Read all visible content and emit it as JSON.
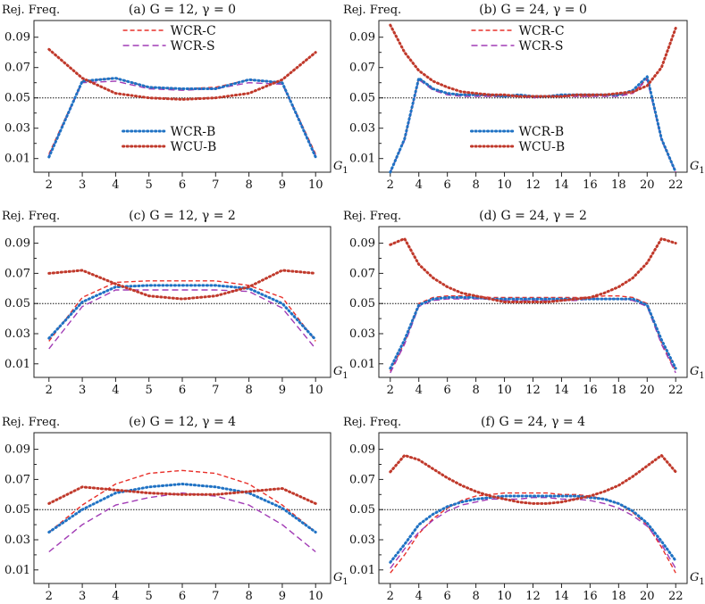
{
  "figure": {
    "ylabel": "Rej. Freq.",
    "xlabel": "G",
    "xlabel_sub": "1",
    "reference_line": 0.05
  },
  "colors": {
    "WCR-C": "#e8302a",
    "WCR-S": "#a13bb5",
    "WCR-B": "#1f72c4",
    "WCU-B": "#c0392b"
  },
  "chart_data": [
    {
      "type": "line",
      "id": "a",
      "title": "(a) G = 12, γ = 0",
      "x": [
        2,
        3,
        4,
        5,
        6,
        7,
        8,
        9,
        10
      ],
      "xticks": [
        2,
        3,
        4,
        5,
        6,
        7,
        8,
        9,
        10
      ],
      "xlim": [
        1.55,
        10.45
      ],
      "ylim": [
        0.001,
        0.101
      ],
      "yticks": [
        0.01,
        0.03,
        0.05,
        0.07,
        0.09
      ],
      "ytick_labels": [
        "0.01",
        "0.03",
        "0.05",
        "0.07",
        "0.09"
      ],
      "legend": "split",
      "series": [
        {
          "name": "WCR-C",
          "style": "dashed-red",
          "values": [
            0.013,
            0.061,
            0.063,
            0.057,
            0.056,
            0.057,
            0.062,
            0.06,
            0.013
          ]
        },
        {
          "name": "WCR-S",
          "style": "dashed-purple",
          "values": [
            0.012,
            0.06,
            0.061,
            0.056,
            0.055,
            0.056,
            0.06,
            0.059,
            0.012
          ]
        },
        {
          "name": "WCR-B",
          "style": "dotted-blue",
          "values": [
            0.011,
            0.061,
            0.063,
            0.057,
            0.056,
            0.056,
            0.062,
            0.06,
            0.011
          ]
        },
        {
          "name": "WCU-B",
          "style": "dotted-red",
          "values": [
            0.082,
            0.063,
            0.053,
            0.05,
            0.049,
            0.05,
            0.053,
            0.062,
            0.08
          ]
        }
      ]
    },
    {
      "type": "line",
      "id": "b",
      "title": "(b) G = 24, γ = 0",
      "x": [
        2,
        3,
        4,
        5,
        6,
        7,
        8,
        9,
        10,
        11,
        12,
        13,
        14,
        15,
        16,
        17,
        18,
        19,
        20,
        21,
        22
      ],
      "xticks": [
        2,
        4,
        6,
        8,
        10,
        12,
        14,
        16,
        18,
        20,
        22
      ],
      "xlim": [
        1.2,
        22.8
      ],
      "ylim": [
        0.001,
        0.101
      ],
      "yticks": [
        0.01,
        0.03,
        0.05,
        0.07,
        0.09
      ],
      "ytick_labels": [
        "0.01",
        "0.03",
        "0.05",
        "0.07",
        "0.09"
      ],
      "legend": "split",
      "series": [
        {
          "name": "WCR-C",
          "style": "dashed-red",
          "values": [
            0.001,
            0.023,
            0.063,
            0.056,
            0.053,
            0.052,
            0.052,
            0.051,
            0.051,
            0.051,
            0.051,
            0.051,
            0.051,
            0.051,
            0.051,
            0.052,
            0.052,
            0.053,
            0.063,
            0.023,
            0.001
          ]
        },
        {
          "name": "WCR-S",
          "style": "dashed-purple",
          "values": [
            0.001,
            0.022,
            0.062,
            0.055,
            0.052,
            0.051,
            0.051,
            0.051,
            0.051,
            0.051,
            0.05,
            0.051,
            0.051,
            0.051,
            0.051,
            0.051,
            0.051,
            0.053,
            0.062,
            0.022,
            0.001
          ]
        },
        {
          "name": "WCR-B",
          "style": "dotted-blue",
          "values": [
            0.001,
            0.023,
            0.063,
            0.056,
            0.053,
            0.052,
            0.052,
            0.052,
            0.051,
            0.052,
            0.051,
            0.051,
            0.052,
            0.052,
            0.052,
            0.052,
            0.052,
            0.055,
            0.064,
            0.023,
            0.001
          ]
        },
        {
          "name": "WCU-B",
          "style": "dotted-red",
          "values": [
            0.098,
            0.08,
            0.068,
            0.061,
            0.057,
            0.054,
            0.053,
            0.052,
            0.052,
            0.051,
            0.051,
            0.051,
            0.051,
            0.052,
            0.052,
            0.052,
            0.053,
            0.054,
            0.058,
            0.07,
            0.096
          ]
        }
      ]
    },
    {
      "type": "line",
      "id": "c",
      "title": "(c) G = 12, γ = 2",
      "x": [
        2,
        3,
        4,
        5,
        6,
        7,
        8,
        9,
        10
      ],
      "xticks": [
        2,
        3,
        4,
        5,
        6,
        7,
        8,
        9,
        10
      ],
      "xlim": [
        1.55,
        10.45
      ],
      "ylim": [
        0.001,
        0.101
      ],
      "yticks": [
        0.01,
        0.03,
        0.05,
        0.07,
        0.09
      ],
      "ytick_labels": [
        "0.01",
        "0.03",
        "0.05",
        "0.07",
        "0.09"
      ],
      "legend": "none",
      "series": [
        {
          "name": "WCR-C",
          "style": "dashed-red",
          "values": [
            0.025,
            0.054,
            0.064,
            0.065,
            0.065,
            0.065,
            0.062,
            0.054,
            0.025
          ]
        },
        {
          "name": "WCR-S",
          "style": "dashed-purple",
          "values": [
            0.02,
            0.048,
            0.059,
            0.059,
            0.059,
            0.059,
            0.058,
            0.047,
            0.02
          ]
        },
        {
          "name": "WCR-B",
          "style": "dotted-blue",
          "values": [
            0.027,
            0.051,
            0.061,
            0.062,
            0.062,
            0.062,
            0.06,
            0.05,
            0.026
          ]
        },
        {
          "name": "WCU-B",
          "style": "dotted-red",
          "values": [
            0.07,
            0.072,
            0.063,
            0.055,
            0.053,
            0.055,
            0.061,
            0.072,
            0.07
          ]
        }
      ]
    },
    {
      "type": "line",
      "id": "d",
      "title": "(d) G = 24, γ = 2",
      "x": [
        2,
        3,
        4,
        5,
        6,
        7,
        8,
        9,
        10,
        11,
        12,
        13,
        14,
        15,
        16,
        17,
        18,
        19,
        20,
        21,
        22
      ],
      "xticks": [
        2,
        4,
        6,
        8,
        10,
        12,
        14,
        16,
        18,
        20,
        22
      ],
      "xlim": [
        1.2,
        22.8
      ],
      "ylim": [
        0.001,
        0.101
      ],
      "yticks": [
        0.01,
        0.03,
        0.05,
        0.07,
        0.09
      ],
      "ytick_labels": [
        "0.01",
        "0.03",
        "0.05",
        "0.07",
        "0.09"
      ],
      "legend": "none",
      "series": [
        {
          "name": "WCR-C",
          "style": "dashed-red",
          "values": [
            0.005,
            0.024,
            0.05,
            0.054,
            0.055,
            0.055,
            0.055,
            0.054,
            0.054,
            0.054,
            0.054,
            0.054,
            0.054,
            0.054,
            0.054,
            0.055,
            0.055,
            0.054,
            0.05,
            0.024,
            0.005
          ]
        },
        {
          "name": "WCR-S",
          "style": "dashed-purple",
          "values": [
            0.004,
            0.023,
            0.048,
            0.052,
            0.053,
            0.053,
            0.053,
            0.053,
            0.052,
            0.052,
            0.052,
            0.052,
            0.052,
            0.052,
            0.053,
            0.053,
            0.053,
            0.052,
            0.048,
            0.023,
            0.004
          ]
        },
        {
          "name": "WCR-B",
          "style": "dotted-blue",
          "values": [
            0.007,
            0.026,
            0.049,
            0.053,
            0.054,
            0.054,
            0.054,
            0.053,
            0.053,
            0.053,
            0.053,
            0.053,
            0.053,
            0.053,
            0.053,
            0.053,
            0.053,
            0.053,
            0.049,
            0.026,
            0.007
          ]
        },
        {
          "name": "WCU-B",
          "style": "dotted-red",
          "values": [
            0.089,
            0.093,
            0.076,
            0.067,
            0.061,
            0.057,
            0.055,
            0.053,
            0.051,
            0.051,
            0.051,
            0.051,
            0.052,
            0.053,
            0.054,
            0.057,
            0.061,
            0.067,
            0.077,
            0.093,
            0.09
          ]
        }
      ]
    },
    {
      "type": "line",
      "id": "e",
      "title": "(e) G = 12, γ = 4",
      "x": [
        2,
        3,
        4,
        5,
        6,
        7,
        8,
        9,
        10
      ],
      "xticks": [
        2,
        3,
        4,
        5,
        6,
        7,
        8,
        9,
        10
      ],
      "xlim": [
        1.55,
        10.45
      ],
      "ylim": [
        0.001,
        0.101
      ],
      "yticks": [
        0.01,
        0.03,
        0.05,
        0.07,
        0.09
      ],
      "ytick_labels": [
        "0.01",
        "0.03",
        "0.05",
        "0.07",
        "0.09"
      ],
      "legend": "none",
      "series": [
        {
          "name": "WCR-C",
          "style": "dashed-red",
          "values": [
            0.035,
            0.053,
            0.067,
            0.074,
            0.076,
            0.074,
            0.067,
            0.053,
            0.035
          ]
        },
        {
          "name": "WCR-S",
          "style": "dashed-purple",
          "values": [
            0.022,
            0.04,
            0.053,
            0.058,
            0.061,
            0.059,
            0.053,
            0.04,
            0.022
          ]
        },
        {
          "name": "WCR-B",
          "style": "dotted-blue",
          "values": [
            0.035,
            0.05,
            0.061,
            0.065,
            0.067,
            0.065,
            0.061,
            0.051,
            0.035
          ]
        },
        {
          "name": "WCU-B",
          "style": "dotted-red",
          "values": [
            0.054,
            0.065,
            0.063,
            0.061,
            0.06,
            0.06,
            0.062,
            0.064,
            0.054
          ]
        }
      ]
    },
    {
      "type": "line",
      "id": "f",
      "title": "(f) G = 24, γ = 4",
      "x": [
        2,
        3,
        4,
        5,
        6,
        7,
        8,
        9,
        10,
        11,
        12,
        13,
        14,
        15,
        16,
        17,
        18,
        19,
        20,
        21,
        22
      ],
      "xticks": [
        2,
        4,
        6,
        8,
        10,
        12,
        14,
        16,
        18,
        20,
        22
      ],
      "xlim": [
        1.2,
        22.8
      ],
      "ylim": [
        0.001,
        0.101
      ],
      "yticks": [
        0.01,
        0.03,
        0.05,
        0.07,
        0.09
      ],
      "ytick_labels": [
        "0.01",
        "0.03",
        "0.05",
        "0.07",
        "0.09"
      ],
      "legend": "none",
      "series": [
        {
          "name": "WCR-C",
          "style": "dashed-red",
          "values": [
            0.008,
            0.02,
            0.034,
            0.044,
            0.051,
            0.056,
            0.059,
            0.06,
            0.061,
            0.061,
            0.061,
            0.061,
            0.06,
            0.06,
            0.059,
            0.057,
            0.054,
            0.048,
            0.04,
            0.025,
            0.008
          ]
        },
        {
          "name": "WCR-S",
          "style": "dashed-purple",
          "values": [
            0.011,
            0.024,
            0.035,
            0.043,
            0.049,
            0.053,
            0.055,
            0.057,
            0.057,
            0.057,
            0.058,
            0.058,
            0.057,
            0.057,
            0.056,
            0.054,
            0.051,
            0.046,
            0.039,
            0.027,
            0.011
          ]
        },
        {
          "name": "WCR-B",
          "style": "dotted-blue",
          "values": [
            0.015,
            0.027,
            0.04,
            0.047,
            0.052,
            0.055,
            0.057,
            0.058,
            0.059,
            0.059,
            0.059,
            0.059,
            0.059,
            0.059,
            0.058,
            0.057,
            0.054,
            0.049,
            0.041,
            0.029,
            0.016
          ]
        },
        {
          "name": "WCU-B",
          "style": "dotted-red",
          "values": [
            0.075,
            0.086,
            0.083,
            0.077,
            0.071,
            0.066,
            0.062,
            0.059,
            0.057,
            0.055,
            0.054,
            0.054,
            0.055,
            0.057,
            0.059,
            0.062,
            0.066,
            0.072,
            0.079,
            0.086,
            0.075
          ]
        }
      ]
    }
  ]
}
